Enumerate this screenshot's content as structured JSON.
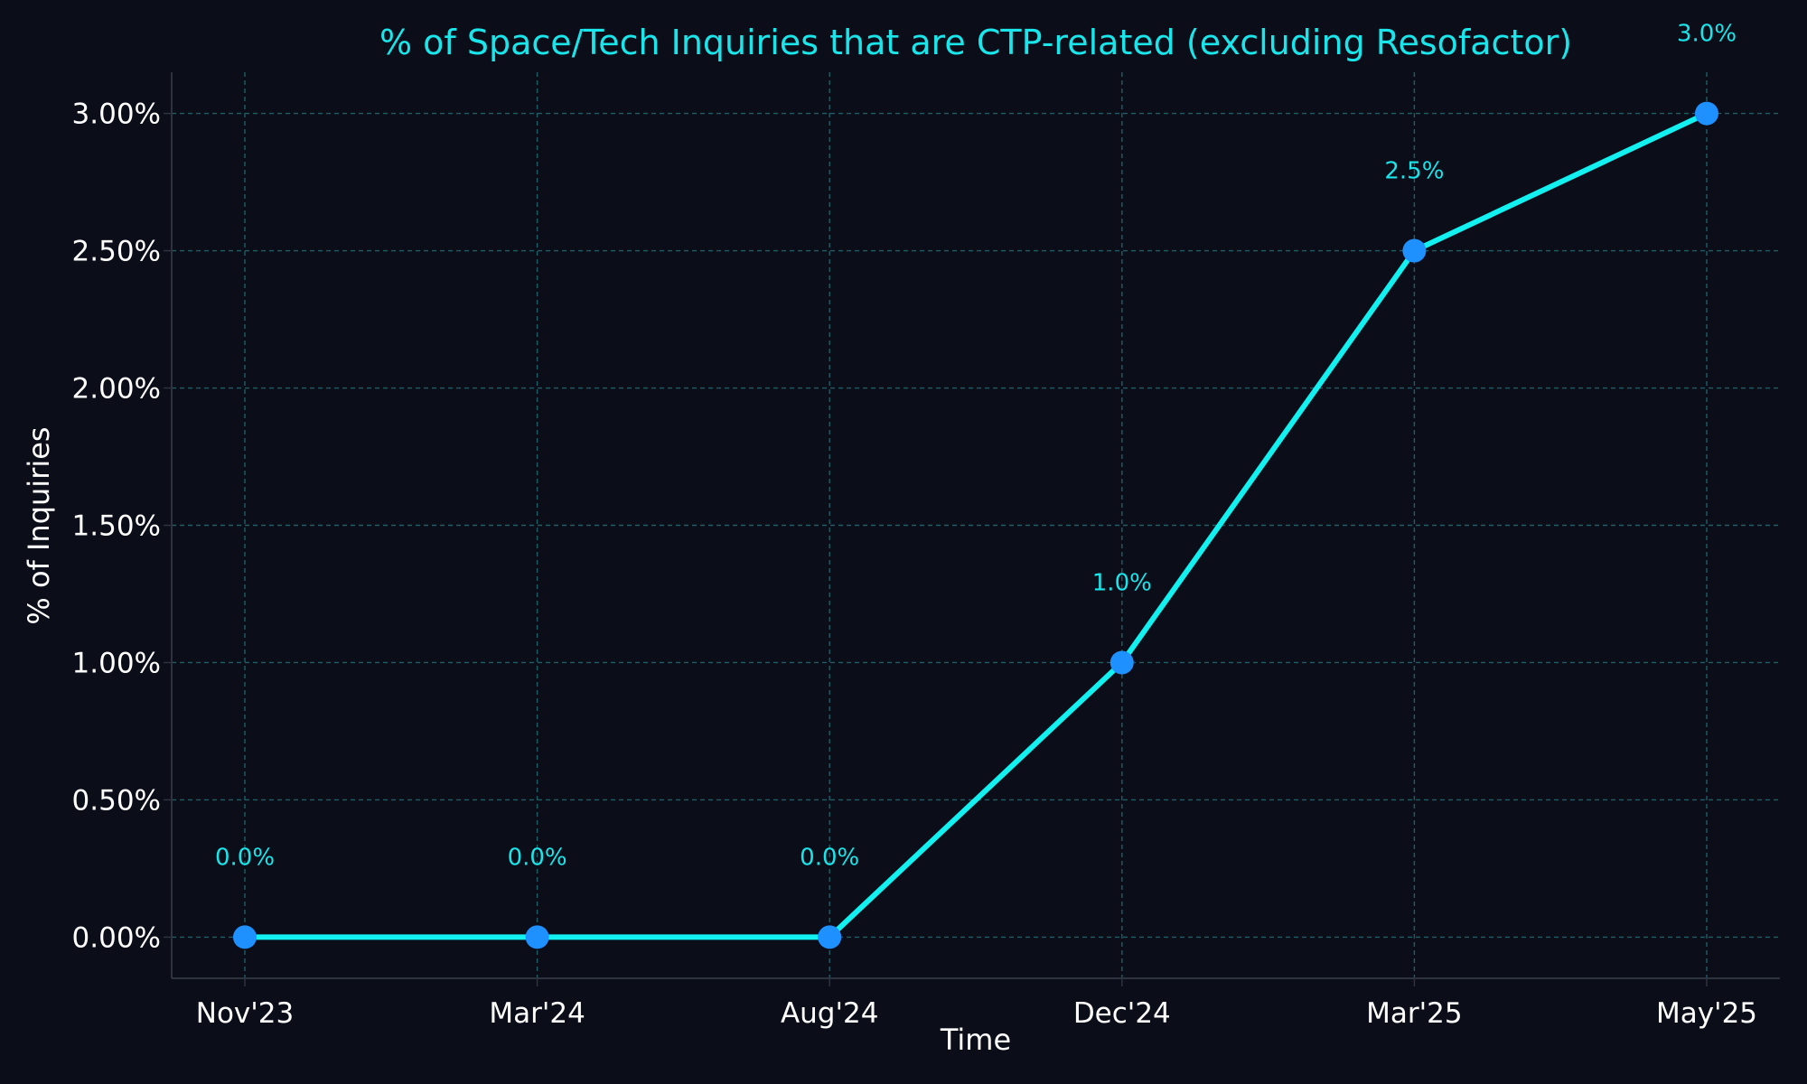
{
  "chart_data": {
    "type": "line",
    "title": "% of Space/Tech Inquiries that are CTP-related (excluding Resofactor)",
    "xlabel": "Time",
    "ylabel": "% of Inquiries",
    "categories": [
      "Nov'23",
      "Mar'24",
      "Aug'24",
      "Dec'24",
      "Mar'25",
      "May'25"
    ],
    "series": [
      {
        "values": [
          0.0,
          0.0,
          0.0,
          1.0,
          2.5,
          3.0
        ],
        "data_labels": [
          "0.0%",
          "0.0%",
          "0.0%",
          "1.0%",
          "2.5%",
          "3.0%"
        ]
      }
    ],
    "yticks": [
      0,
      0.5,
      1.0,
      1.5,
      2.0,
      2.5,
      3.0
    ],
    "ytick_labels": [
      "0.00%",
      "0.50%",
      "1.00%",
      "1.50%",
      "2.00%",
      "2.50%",
      "3.00%"
    ],
    "ylim": [
      -0.15,
      3.15
    ],
    "grid": true,
    "legend": "none",
    "colors": {
      "background": "#0b0d18",
      "line": "#12f0f0",
      "marker": "#1e90ff",
      "title": "#19e5ea",
      "data_label": "#19e5ea",
      "text": "#ffffff",
      "grid": "#1e5f66",
      "axis": "#2e3340"
    }
  }
}
